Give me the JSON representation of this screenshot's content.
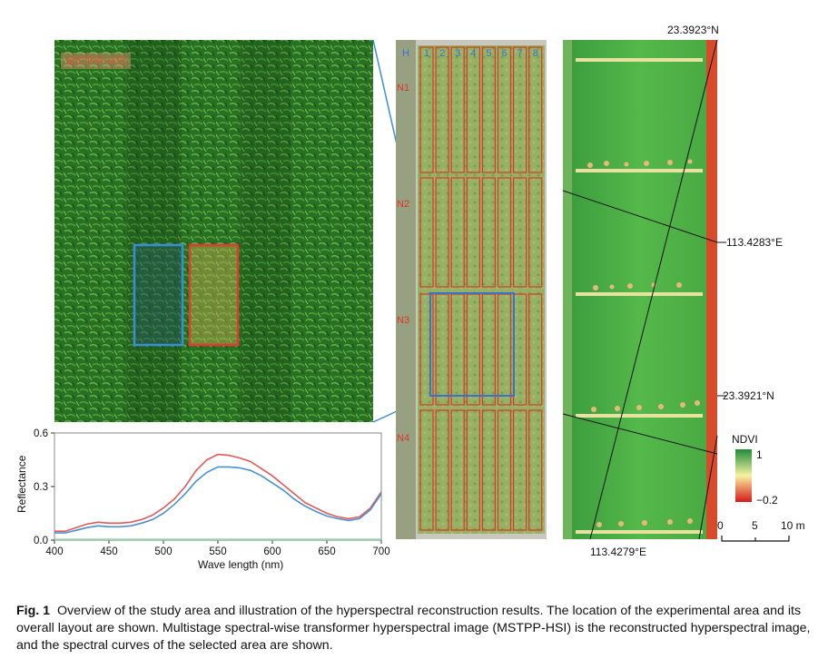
{
  "crop_panel": {
    "label": "MSTPP-HSI"
  },
  "layout_panel": {
    "columns": [
      "H",
      "1",
      "2",
      "3",
      "4",
      "5",
      "6",
      "7",
      "8"
    ],
    "rows": [
      "N1",
      "N2",
      "N3",
      "N4"
    ]
  },
  "ndvi_panel": {
    "lat_top": "23.3923°N",
    "lon_right": "113.4283°E",
    "lat_right": "23.3921°N",
    "lon_bottom": "113.4279°E",
    "legend_title": "NDVI",
    "legend_max": "1",
    "legend_min": "−0.2",
    "scale_ticks": [
      "0",
      "5",
      "10 m"
    ],
    "colors": {
      "high": "#1e8c3a",
      "mid": "#f6f2a0",
      "low": "#d7191c"
    }
  },
  "chart_data": {
    "type": "line",
    "xlabel": "Wave length (nm)",
    "ylabel": "Reflectance",
    "xlim": [
      400,
      700
    ],
    "ylim": [
      0,
      0.6
    ],
    "xticks": [
      "400",
      "450",
      "500",
      "550",
      "600",
      "650",
      "700"
    ],
    "yticks": [
      "0.0",
      "0.3",
      "0.6"
    ],
    "series": [
      {
        "color": "#e05a5a",
        "x": [
          400,
          410,
          420,
          430,
          440,
          450,
          460,
          470,
          480,
          490,
          500,
          510,
          520,
          530,
          540,
          550,
          560,
          570,
          580,
          590,
          600,
          610,
          620,
          630,
          640,
          650,
          660,
          670,
          680,
          690,
          700
        ],
        "y": [
          0.05,
          0.05,
          0.07,
          0.09,
          0.1,
          0.095,
          0.095,
          0.1,
          0.115,
          0.14,
          0.18,
          0.23,
          0.3,
          0.39,
          0.45,
          0.48,
          0.475,
          0.46,
          0.44,
          0.4,
          0.36,
          0.31,
          0.26,
          0.21,
          0.18,
          0.15,
          0.13,
          0.12,
          0.13,
          0.18,
          0.27
        ]
      },
      {
        "color": "#4a90d0",
        "x": [
          400,
          410,
          420,
          430,
          440,
          450,
          460,
          470,
          480,
          490,
          500,
          510,
          520,
          530,
          540,
          550,
          560,
          570,
          580,
          590,
          600,
          610,
          620,
          630,
          640,
          650,
          660,
          670,
          680,
          690,
          700
        ],
        "y": [
          0.04,
          0.04,
          0.055,
          0.07,
          0.08,
          0.075,
          0.075,
          0.08,
          0.095,
          0.115,
          0.15,
          0.2,
          0.26,
          0.33,
          0.38,
          0.41,
          0.41,
          0.405,
          0.39,
          0.36,
          0.32,
          0.28,
          0.23,
          0.19,
          0.16,
          0.135,
          0.12,
          0.11,
          0.12,
          0.17,
          0.26
        ]
      }
    ]
  },
  "caption": {
    "label": "Fig. 1",
    "text": "Overview of the study area and illustration of the hyperspectral reconstruction results.  The location of the experimental area and its overall layout are shown.  Multistage spectral-wise transformer hyperspectral image (MSTPP-HSI) is the reconstructed hyperspectral image, and the spectral curves of the selected area are shown."
  }
}
